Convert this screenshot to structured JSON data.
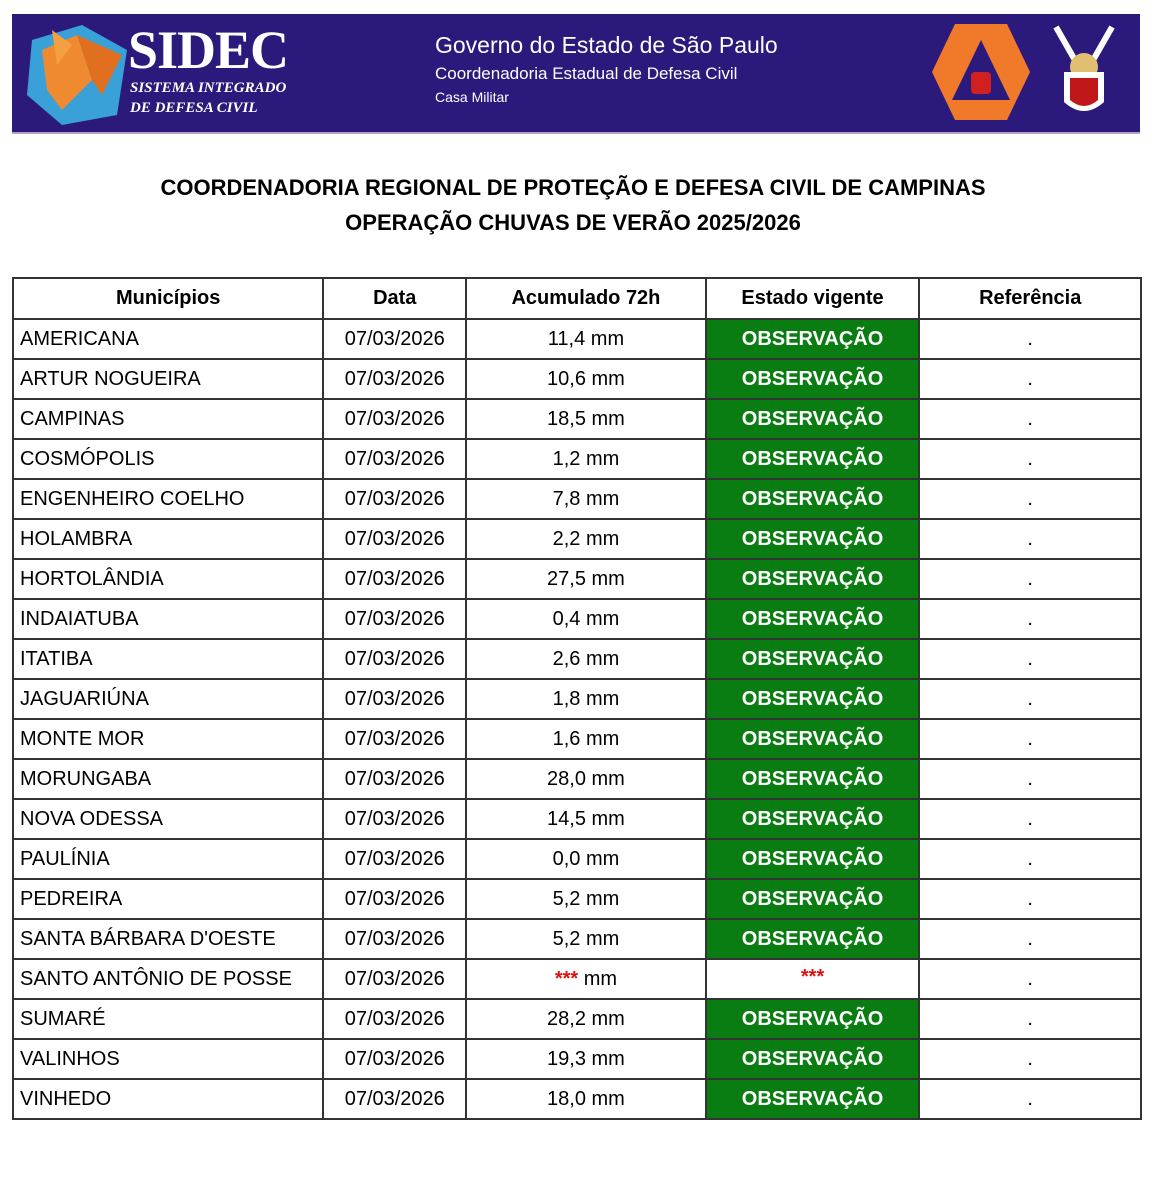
{
  "banner": {
    "logo_title": "SIDEC",
    "logo_sub1": "SISTEMA INTEGRADO",
    "logo_sub2": "DE DEFESA CIVIL",
    "gov_line1": "Governo do Estado de São Paulo",
    "gov_line2": "Coordenadoria Estadual de Defesa Civil",
    "gov_line3": "Casa Militar",
    "colors": {
      "background": "#2b1a7c",
      "emblem_orange": "#f07a2a"
    }
  },
  "title_line1": "COORDENADORIA REGIONAL DE PROTEÇÃO E DEFESA CIVIL DE CAMPINAS",
  "title_line2": "OPERAÇÃO CHUVAS DE VERÃO 2025/2026",
  "table": {
    "headers": [
      "Municípios",
      "Data",
      "Acumulado 72h",
      "Estado vigente",
      "Referência"
    ],
    "status_color": "#0a7d12",
    "rows": [
      {
        "municipio": "AMERICANA",
        "data": "07/03/2026",
        "acumulado": "11,4 mm",
        "estado": "OBSERVAÇÃO",
        "referencia": "."
      },
      {
        "municipio": "ARTUR NOGUEIRA",
        "data": "07/03/2026",
        "acumulado": "10,6 mm",
        "estado": "OBSERVAÇÃO",
        "referencia": "."
      },
      {
        "municipio": "CAMPINAS",
        "data": "07/03/2026",
        "acumulado": "18,5 mm",
        "estado": "OBSERVAÇÃO",
        "referencia": "."
      },
      {
        "municipio": "COSMÓPOLIS",
        "data": "07/03/2026",
        "acumulado": "1,2 mm",
        "estado": "OBSERVAÇÃO",
        "referencia": "."
      },
      {
        "municipio": "ENGENHEIRO COELHO",
        "data": "07/03/2026",
        "acumulado": "7,8 mm",
        "estado": "OBSERVAÇÃO",
        "referencia": "."
      },
      {
        "municipio": "HOLAMBRA",
        "data": "07/03/2026",
        "acumulado": "2,2 mm",
        "estado": "OBSERVAÇÃO",
        "referencia": "."
      },
      {
        "municipio": "HORTOLÂNDIA",
        "data": "07/03/2026",
        "acumulado": "27,5 mm",
        "estado": "OBSERVAÇÃO",
        "referencia": "."
      },
      {
        "municipio": "INDAIATUBA",
        "data": "07/03/2026",
        "acumulado": "0,4 mm",
        "estado": "OBSERVAÇÃO",
        "referencia": "."
      },
      {
        "municipio": "ITATIBA",
        "data": "07/03/2026",
        "acumulado": "2,6 mm",
        "estado": "OBSERVAÇÃO",
        "referencia": "."
      },
      {
        "municipio": "JAGUARIÚNA",
        "data": "07/03/2026",
        "acumulado": "1,8 mm",
        "estado": "OBSERVAÇÃO",
        "referencia": "."
      },
      {
        "municipio": "MONTE MOR",
        "data": "07/03/2026",
        "acumulado": "1,6 mm",
        "estado": "OBSERVAÇÃO",
        "referencia": "."
      },
      {
        "municipio": "MORUNGABA",
        "data": "07/03/2026",
        "acumulado": "28,0 mm",
        "estado": "OBSERVAÇÃO",
        "referencia": "."
      },
      {
        "municipio": "NOVA ODESSA",
        "data": "07/03/2026",
        "acumulado": "14,5 mm",
        "estado": "OBSERVAÇÃO",
        "referencia": "."
      },
      {
        "municipio": "PAULÍNIA",
        "data": "07/03/2026",
        "acumulado": "0,0 mm",
        "estado": "OBSERVAÇÃO",
        "referencia": "."
      },
      {
        "municipio": "PEDREIRA",
        "data": "07/03/2026",
        "acumulado": "5,2 mm",
        "estado": "OBSERVAÇÃO",
        "referencia": "."
      },
      {
        "municipio": "SANTA BÁRBARA D'OESTE",
        "data": "07/03/2026",
        "acumulado": "5,2 mm",
        "estado": "OBSERVAÇÃO",
        "referencia": "."
      },
      {
        "municipio": "SANTO ANTÔNIO DE POSSE",
        "data": "07/03/2026",
        "acumulado_missing": "***",
        "acumulado_unit": "mm",
        "estado_missing": "***",
        "referencia": "."
      },
      {
        "municipio": "SUMARÉ",
        "data": "07/03/2026",
        "acumulado": "28,2 mm",
        "estado": "OBSERVAÇÃO",
        "referencia": "."
      },
      {
        "municipio": "VALINHOS",
        "data": "07/03/2026",
        "acumulado": "19,3 mm",
        "estado": "OBSERVAÇÃO",
        "referencia": "."
      },
      {
        "municipio": "VINHEDO",
        "data": "07/03/2026",
        "acumulado": "18,0 mm",
        "estado": "OBSERVAÇÃO",
        "referencia": "."
      }
    ]
  }
}
